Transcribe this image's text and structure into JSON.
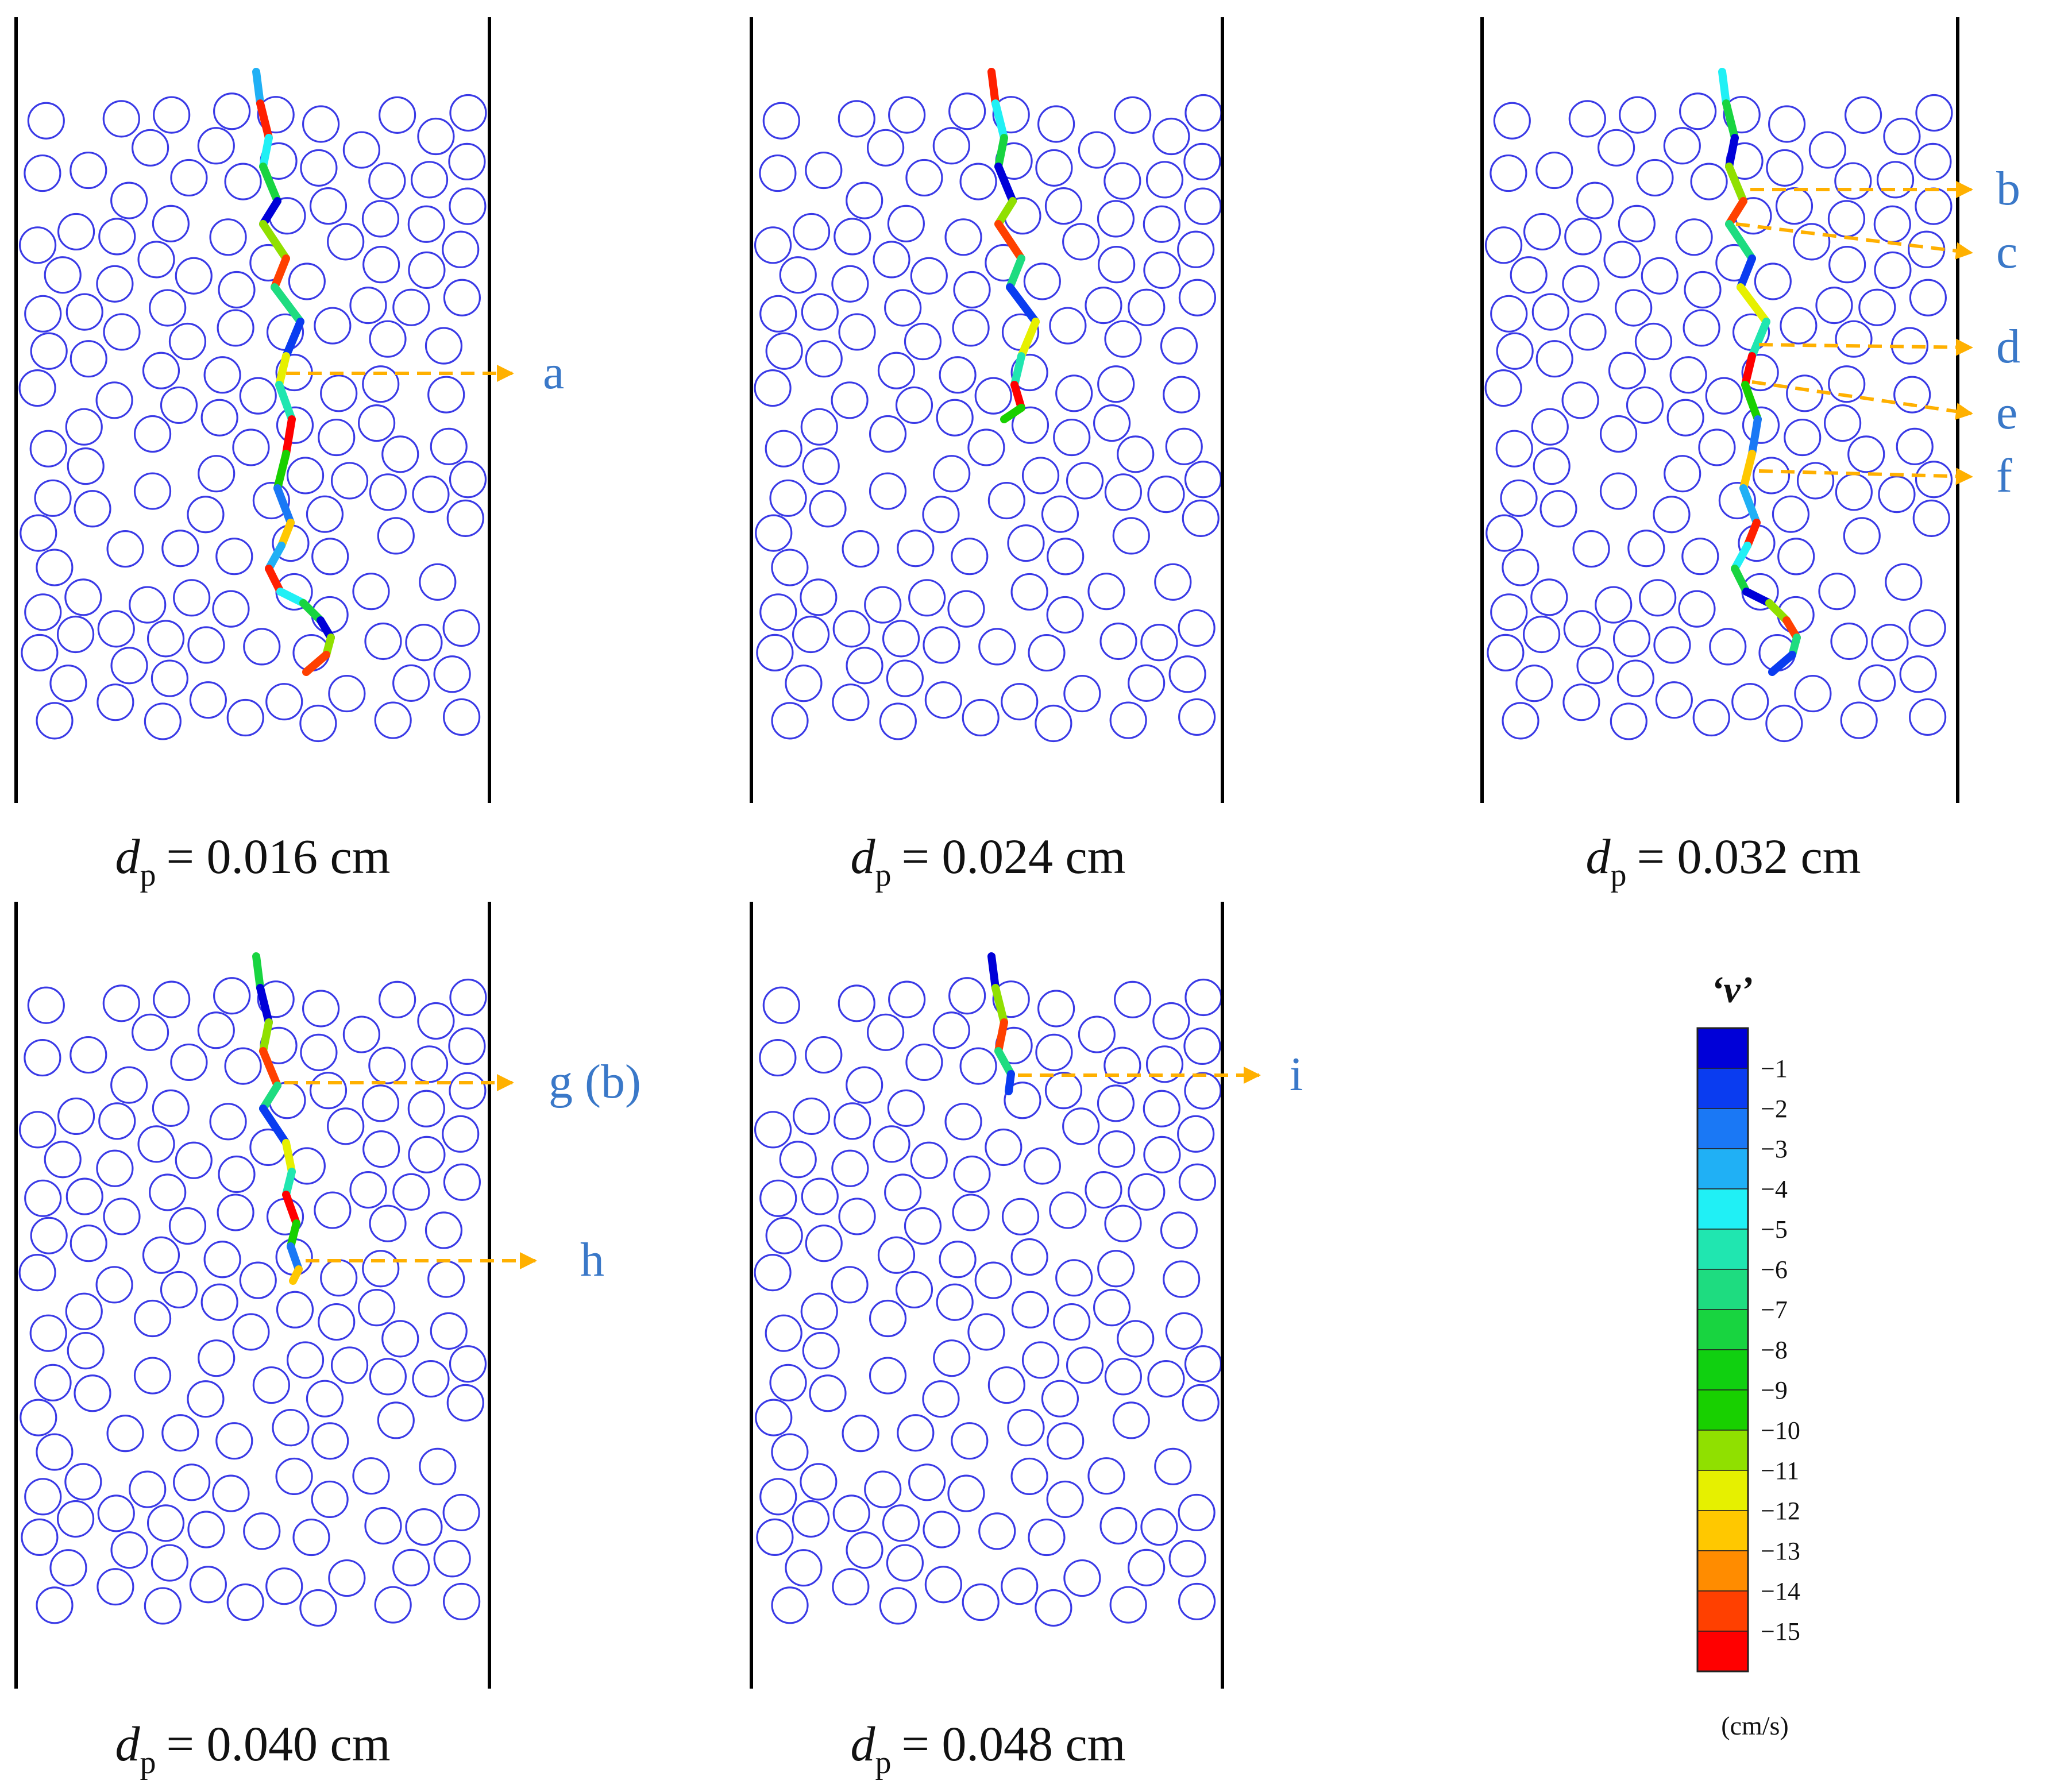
{
  "figure": {
    "panels": [
      {
        "id": "p1",
        "caption_var": "d",
        "caption_sub": "p",
        "caption_value": "= 0.016 cm",
        "labels": [
          "a"
        ],
        "path_len": "long"
      },
      {
        "id": "p2",
        "caption_var": "d",
        "caption_sub": "p",
        "caption_value": "= 0.024 cm",
        "labels": [],
        "path_len": "medium"
      },
      {
        "id": "p3",
        "caption_var": "d",
        "caption_sub": "p",
        "caption_value": "= 0.032 cm",
        "labels": [
          "b",
          "c",
          "d",
          "e",
          "f"
        ],
        "path_len": "long"
      },
      {
        "id": "p4",
        "caption_var": "d",
        "caption_sub": "p",
        "caption_value": "= 0.040 cm",
        "labels": [
          "g (b)",
          "h"
        ],
        "path_len": "short"
      },
      {
        "id": "p5",
        "caption_var": "d",
        "caption_sub": "p",
        "caption_value": "= 0.048 cm",
        "labels": [
          "i"
        ],
        "path_len": "tiny"
      }
    ],
    "legend": {
      "title": "‘v’",
      "unit": "(cm/s)",
      "ticks": [
        "−1",
        "−2",
        "−3",
        "−4",
        "−5",
        "−6",
        "−7",
        "−8",
        "−9",
        "−10",
        "−11",
        "−12",
        "−13",
        "−14",
        "−15"
      ],
      "colors": [
        "#0000d8",
        "#0a3cf0",
        "#1a78f5",
        "#20b0f5",
        "#20f0f5",
        "#20e6b0",
        "#1edc80",
        "#18d440",
        "#10d010",
        "#18d000",
        "#90e000",
        "#e6f000",
        "#ffc800",
        "#ff8c00",
        "#ff4000",
        "#ff0000"
      ]
    },
    "colors": {
      "particle": "#3a3ae6",
      "wall": "#000000",
      "arrow": "#ffb000",
      "label": "#3a78c8"
    }
  }
}
